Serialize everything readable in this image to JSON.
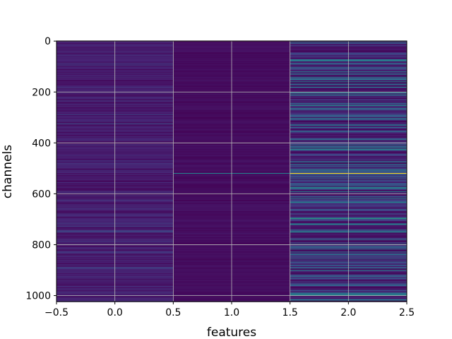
{
  "chart_data": {
    "type": "heatmap",
    "title": "",
    "xlabel": "features",
    "ylabel": "channels",
    "xlim": [
      -0.5,
      2.5
    ],
    "ylim": [
      1023.5,
      -0.5
    ],
    "x_ticks": [
      -0.5,
      0.0,
      0.5,
      1.0,
      1.5,
      2.0,
      2.5
    ],
    "x_tick_labels": [
      "−0.5",
      "0.0",
      "0.5",
      "1.0",
      "1.5",
      "2.0",
      "2.5"
    ],
    "y_ticks": [
      0,
      200,
      400,
      600,
      800,
      1000
    ],
    "y_tick_labels": [
      "0",
      "200",
      "400",
      "600",
      "800",
      "1000"
    ],
    "grid": true,
    "colormap": "viridis",
    "n_rows": 1024,
    "columns": [
      0,
      1,
      2
    ],
    "value_range": [
      0,
      1
    ],
    "highlight": {
      "row": 520,
      "values": [
        0.05,
        0.45,
        1.0
      ]
    },
    "background_colors": {
      "low": "#440154",
      "mid": "#21918c",
      "high": "#fde725"
    }
  }
}
